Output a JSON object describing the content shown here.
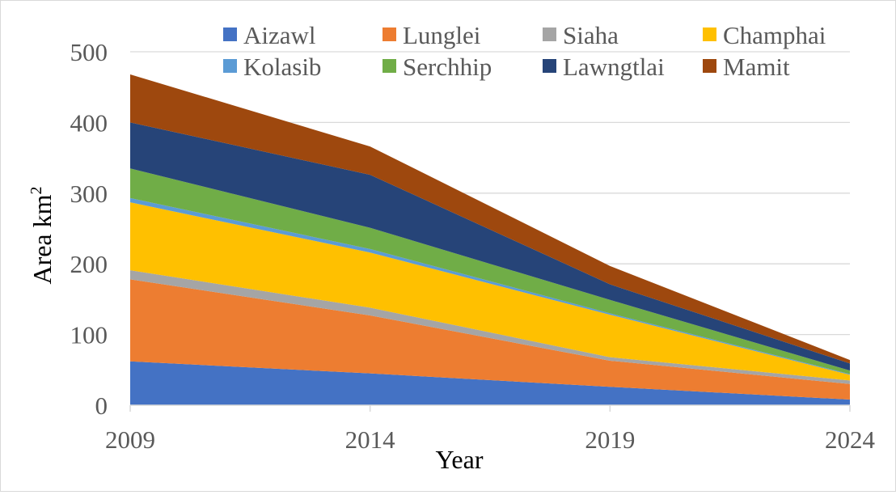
{
  "chart_data": {
    "type": "area",
    "stacked": true,
    "title": "",
    "xlabel": "Year",
    "ylabel": "Area km",
    "ylabel_superscript": "2",
    "x": [
      "2009",
      "2014",
      "2019",
      "2024"
    ],
    "yticks": [
      "0",
      "100",
      "200",
      "300",
      "400",
      "500"
    ],
    "ylim": [
      0,
      500
    ],
    "grid": true,
    "legend_position": "top",
    "series": [
      {
        "name": "Aizawl",
        "color": "#4472C4",
        "values": [
          62,
          45,
          26,
          8
        ]
      },
      {
        "name": "Lunglei",
        "color": "#ED7D31",
        "values": [
          116,
          82,
          37,
          22
        ]
      },
      {
        "name": "Siaha",
        "color": "#A5A5A5",
        "values": [
          13,
          11,
          5,
          5
        ]
      },
      {
        "name": "Champhai",
        "color": "#FFC000",
        "values": [
          96,
          78,
          60,
          8
        ]
      },
      {
        "name": "Kolasib",
        "color": "#5B9BD5",
        "values": [
          6,
          5,
          2,
          1
        ]
      },
      {
        "name": "Serchhip",
        "color": "#70AD47",
        "values": [
          42,
          30,
          19,
          5
        ]
      },
      {
        "name": "Lawngtlai",
        "color": "#264478",
        "values": [
          65,
          75,
          22,
          10
        ]
      },
      {
        "name": "Mamit",
        "color": "#9E480E",
        "values": [
          68,
          40,
          26,
          5
        ]
      }
    ]
  }
}
